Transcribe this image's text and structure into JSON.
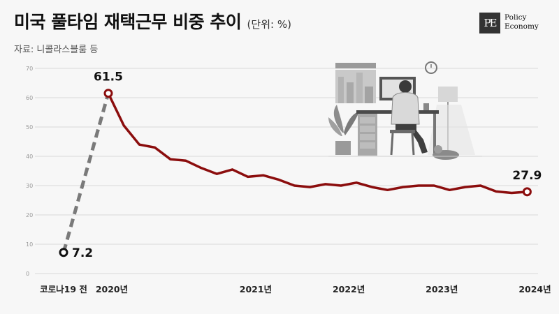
{
  "header": {
    "title": "미국 풀타임 재택근무 비중 추이",
    "unit": "(단위: %)",
    "source": "자료: 니콜라스블룸 등"
  },
  "logo": {
    "mark": "PE",
    "line1": "Policy",
    "line2": "Economy"
  },
  "colors": {
    "line": "#8b0d0d",
    "dashed": "#7a7a7a",
    "grid": "#d8d8d8",
    "background": "#f7f7f7"
  },
  "chart_data": {
    "type": "line",
    "title": "미국 풀타임 재택근무 비중 추이",
    "unit": "(단위: %)",
    "ylim": [
      0,
      70
    ],
    "yticks": [
      0,
      10,
      20,
      30,
      40,
      50,
      60,
      70
    ],
    "grid": true,
    "x_labels": [
      {
        "label": "코로나19 전",
        "index": 0
      },
      {
        "label": "2020년",
        "index": 2.5
      },
      {
        "label": "2021년",
        "index": 9.5
      },
      {
        "label": "2022년",
        "index": 15.5
      },
      {
        "label": "2023년",
        "index": 21.5
      },
      {
        "label": "2024년",
        "index": 27.5
      }
    ],
    "pre_covid": {
      "value": 7.2,
      "label": "7.2"
    },
    "series": [
      {
        "values": [
          61.5,
          50.5,
          44.0,
          43.0,
          39.0,
          38.5,
          36.0,
          34.0,
          35.5,
          33.0,
          33.5,
          32.0,
          30.0,
          29.5,
          30.5,
          30.0,
          31.0,
          29.5,
          28.5,
          29.5,
          30.0,
          30.0,
          28.5,
          29.5,
          30.0,
          28.0,
          27.5,
          27.9
        ]
      }
    ],
    "data_labels": [
      {
        "text": "61.5",
        "point": "first"
      },
      {
        "text": "27.9",
        "point": "last"
      }
    ]
  },
  "illustration": {
    "description_icon": "remote-worker-at-desk-illustration"
  }
}
